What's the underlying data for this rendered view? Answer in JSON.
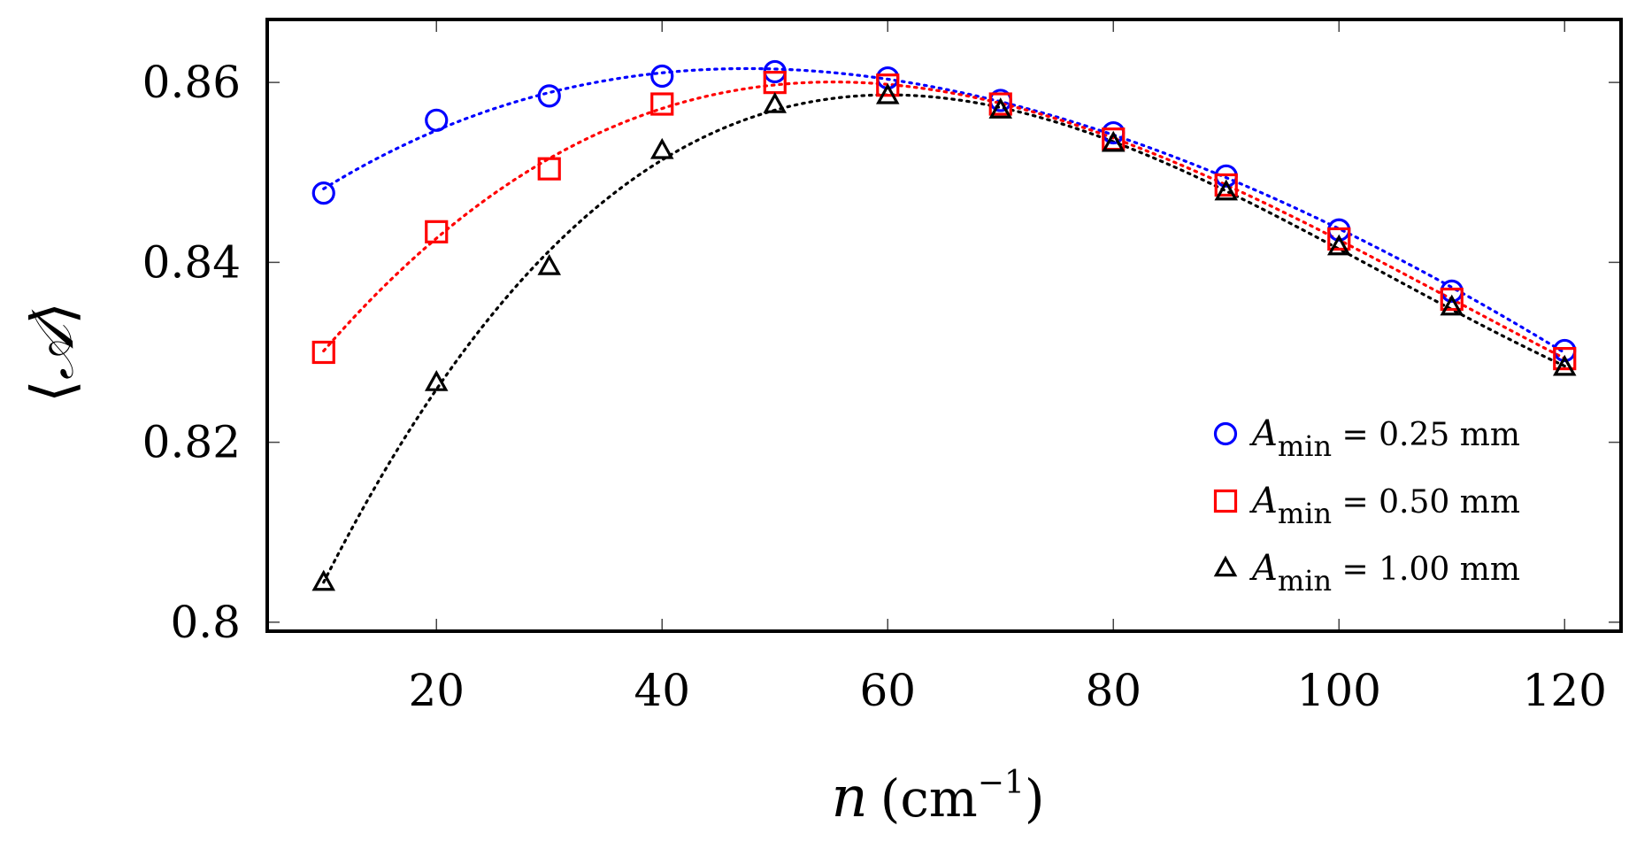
{
  "chart_data": {
    "type": "scatter",
    "title": "",
    "xlabel": {
      "symbol": "n",
      "unit_prefix": "(cm",
      "unit_exp": "−1",
      "unit_suffix": ")"
    },
    "ylabel": {
      "left": "⟨",
      "symbol": "𝒜",
      "right": "⟩"
    },
    "xlim": [
      5,
      125
    ],
    "ylim": [
      0.799,
      0.867
    ],
    "xticks": [
      20,
      40,
      60,
      80,
      100,
      120
    ],
    "xtick_labels": [
      "20",
      "40",
      "60",
      "80",
      "100",
      "120"
    ],
    "yticks": [
      0.8,
      0.82,
      0.84,
      0.86
    ],
    "ytick_labels": [
      "0.8",
      "0.82",
      "0.84",
      "0.86"
    ],
    "x": [
      10,
      20,
      30,
      40,
      50,
      60,
      70,
      80,
      90,
      100,
      110,
      120
    ],
    "fit_line_style": "dotted",
    "legend_position": "lower-right",
    "series": [
      {
        "key": "s025",
        "legend": {
          "symbol": "A",
          "sub": "min",
          "rest": " = 0.25 mm"
        },
        "marker": "circle",
        "color": "#0000ff",
        "values": [
          0.8477,
          0.8558,
          0.8585,
          0.8607,
          0.8612,
          0.8605,
          0.858,
          0.8544,
          0.8496,
          0.8436,
          0.8368,
          0.8302
        ]
      },
      {
        "key": "s050",
        "legend": {
          "symbol": "A",
          "sub": "min",
          "rest": " = 0.50 mm"
        },
        "marker": "square",
        "color": "#ff0000",
        "values": [
          0.83,
          0.8434,
          0.8504,
          0.8576,
          0.86,
          0.8597,
          0.8576,
          0.8537,
          0.8486,
          0.8426,
          0.8359,
          0.8293
        ]
      },
      {
        "key": "s100",
        "legend": {
          "symbol": "A",
          "sub": "min",
          "rest": " = 1.00 mm"
        },
        "marker": "triangle",
        "color": "#000000",
        "values": [
          0.8044,
          0.8266,
          0.8395,
          0.8524,
          0.8575,
          0.8585,
          0.8569,
          0.8532,
          0.8478,
          0.8417,
          0.835,
          0.8283
        ]
      }
    ]
  }
}
